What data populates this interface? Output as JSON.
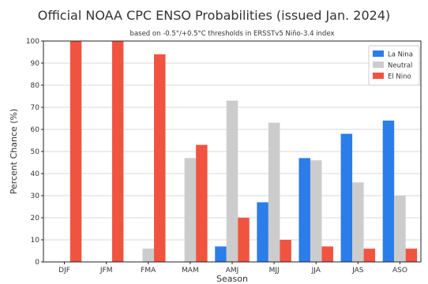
{
  "chart_data": {
    "type": "bar",
    "title": "Official NOAA CPC ENSO Probabilities (issued Jan. 2024)",
    "subtitle": "based on -0.5°/+0.5°C thresholds in ERSSTv5 Niño-3.4 index",
    "xlabel": "Season",
    "ylabel": "Percent Chance (%)",
    "ylim": [
      0,
      100
    ],
    "yticks": [
      0,
      10,
      20,
      30,
      40,
      50,
      60,
      70,
      80,
      90,
      100
    ],
    "grid": true,
    "legend_position": "top-right",
    "categories": [
      "DJF",
      "JFM",
      "FMA",
      "MAM",
      "AMJ",
      "MJJ",
      "JJA",
      "JAS",
      "ASO"
    ],
    "series": [
      {
        "name": "La Nina",
        "color": "#2b7de9",
        "values": [
          0,
          0,
          0,
          0,
          7,
          27,
          47,
          58,
          64
        ]
      },
      {
        "name": "Neutral",
        "color": "#cccccc",
        "values": [
          0,
          0,
          6,
          47,
          73,
          63,
          46,
          36,
          30
        ]
      },
      {
        "name": "El Nino",
        "color": "#f05440",
        "values": [
          100,
          100,
          94,
          53,
          20,
          10,
          7,
          6,
          6
        ]
      }
    ]
  }
}
